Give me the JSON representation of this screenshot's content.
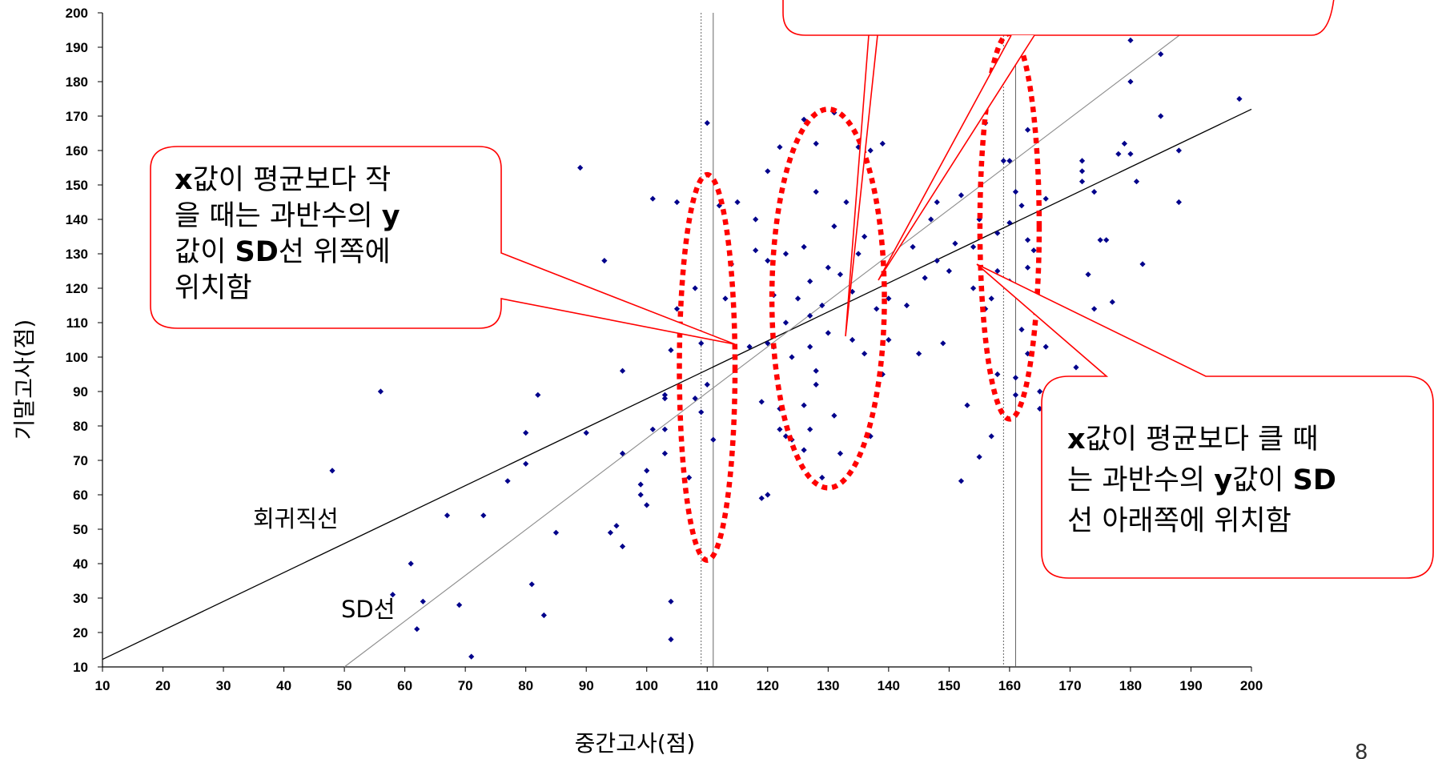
{
  "chart_data": {
    "type": "scatter",
    "title": "",
    "xlabel": "중간고사(점)",
    "ylabel": "기말고사(점)",
    "xlim": [
      10,
      200
    ],
    "ylim": [
      10,
      200
    ],
    "xticks": [
      "10",
      "20",
      "30",
      "40",
      "50",
      "60",
      "70",
      "80",
      "90",
      "100",
      "110",
      "120",
      "130",
      "140",
      "150",
      "160",
      "170",
      "180",
      "190",
      "200"
    ],
    "yticks": [
      "10",
      "20",
      "30",
      "40",
      "50",
      "60",
      "70",
      "80",
      "90",
      "100",
      "110",
      "120",
      "130",
      "140",
      "150",
      "160",
      "170",
      "180",
      "190",
      "200"
    ],
    "grid": false,
    "marker_color": "#00008B",
    "points": [
      [
        48,
        67
      ],
      [
        56,
        90
      ],
      [
        58,
        31
      ],
      [
        61,
        40
      ],
      [
        62,
        21
      ],
      [
        63,
        29
      ],
      [
        67,
        54
      ],
      [
        69,
        28
      ],
      [
        71,
        13
      ],
      [
        73,
        54
      ],
      [
        77,
        64
      ],
      [
        80,
        78
      ],
      [
        80,
        69
      ],
      [
        81,
        34
      ],
      [
        82,
        89
      ],
      [
        83,
        25
      ],
      [
        85,
        49
      ],
      [
        89,
        155
      ],
      [
        90,
        78
      ],
      [
        93,
        128
      ],
      [
        94,
        49
      ],
      [
        95,
        51
      ],
      [
        96,
        72
      ],
      [
        96,
        45
      ],
      [
        96,
        96
      ],
      [
        99,
        63
      ],
      [
        99,
        60
      ],
      [
        100,
        57
      ],
      [
        100,
        67
      ],
      [
        101,
        79
      ],
      [
        101,
        146
      ],
      [
        103,
        72
      ],
      [
        103,
        79
      ],
      [
        103,
        88
      ],
      [
        103,
        89
      ],
      [
        104,
        18
      ],
      [
        104,
        29
      ],
      [
        104,
        102
      ],
      [
        105,
        145
      ],
      [
        105,
        114
      ],
      [
        107,
        65
      ],
      [
        108,
        120
      ],
      [
        108,
        107
      ],
      [
        108,
        88
      ],
      [
        109,
        104
      ],
      [
        109,
        84
      ],
      [
        110,
        92
      ],
      [
        110,
        168
      ],
      [
        111,
        76
      ],
      [
        112,
        144
      ],
      [
        113,
        117
      ],
      [
        114,
        127
      ],
      [
        115,
        145
      ],
      [
        117,
        103
      ],
      [
        118,
        140
      ],
      [
        118,
        131
      ],
      [
        119,
        59
      ],
      [
        119,
        87
      ],
      [
        120,
        60
      ],
      [
        120,
        154
      ],
      [
        120,
        128
      ],
      [
        120,
        104
      ],
      [
        121,
        118
      ],
      [
        121,
        103
      ],
      [
        122,
        85
      ],
      [
        122,
        79
      ],
      [
        123,
        77
      ],
      [
        122,
        161
      ],
      [
        123,
        130
      ],
      [
        123,
        110
      ],
      [
        124,
        76
      ],
      [
        124,
        100
      ],
      [
        125,
        117
      ],
      [
        126,
        169
      ],
      [
        126,
        132
      ],
      [
        126,
        86
      ],
      [
        126,
        73
      ],
      [
        127,
        79
      ],
      [
        127,
        112
      ],
      [
        127,
        103
      ],
      [
        127,
        122
      ],
      [
        128,
        162
      ],
      [
        128,
        148
      ],
      [
        128,
        96
      ],
      [
        128,
        92
      ],
      [
        129,
        115
      ],
      [
        129,
        65
      ],
      [
        130,
        126
      ],
      [
        130,
        107
      ],
      [
        131,
        138
      ],
      [
        131,
        83
      ],
      [
        131,
        171
      ],
      [
        132,
        72
      ],
      [
        132,
        124
      ],
      [
        133,
        145
      ],
      [
        134,
        119
      ],
      [
        134,
        105
      ],
      [
        135,
        161
      ],
      [
        135,
        130
      ],
      [
        136,
        101
      ],
      [
        136,
        135
      ],
      [
        137,
        160
      ],
      [
        137,
        77
      ],
      [
        138,
        114
      ],
      [
        139,
        162
      ],
      [
        139,
        95
      ],
      [
        140,
        117
      ],
      [
        140,
        105
      ],
      [
        143,
        115
      ],
      [
        144,
        132
      ],
      [
        145,
        101
      ],
      [
        146,
        123
      ],
      [
        147,
        140
      ],
      [
        148,
        145
      ],
      [
        148,
        128
      ],
      [
        149,
        104
      ],
      [
        150,
        125
      ],
      [
        151,
        133
      ],
      [
        152,
        147
      ],
      [
        152,
        64
      ],
      [
        153,
        86
      ],
      [
        154,
        132
      ],
      [
        154,
        120
      ],
      [
        155,
        71
      ],
      [
        155,
        140
      ],
      [
        156,
        168
      ],
      [
        156,
        114
      ],
      [
        157,
        117
      ],
      [
        157,
        77
      ],
      [
        158,
        95
      ],
      [
        158,
        125
      ],
      [
        158,
        136
      ],
      [
        159,
        157
      ],
      [
        160,
        139
      ],
      [
        160,
        157
      ],
      [
        160,
        122
      ],
      [
        161,
        148
      ],
      [
        161,
        89
      ],
      [
        161,
        94
      ],
      [
        162,
        108
      ],
      [
        163,
        166
      ],
      [
        162,
        144
      ],
      [
        163,
        134
      ],
      [
        163,
        101
      ],
      [
        163,
        126
      ],
      [
        164,
        131
      ],
      [
        165,
        90
      ],
      [
        166,
        146
      ],
      [
        166,
        103
      ],
      [
        165,
        85
      ],
      [
        167,
        111
      ],
      [
        171,
        97
      ],
      [
        172,
        157
      ],
      [
        172,
        154
      ],
      [
        172,
        151
      ],
      [
        173,
        124
      ],
      [
        174,
        114
      ],
      [
        174,
        148
      ],
      [
        175,
        134
      ],
      [
        176,
        134
      ],
      [
        177,
        116
      ],
      [
        178,
        159
      ],
      [
        179,
        162
      ],
      [
        180,
        159
      ],
      [
        180,
        192
      ],
      [
        180,
        180
      ],
      [
        181,
        151
      ],
      [
        182,
        127
      ],
      [
        185,
        188
      ],
      [
        185,
        170
      ],
      [
        188,
        160
      ],
      [
        188,
        145
      ],
      [
        198,
        175
      ]
    ],
    "lines": [
      {
        "name": "회귀직선",
        "style": "black",
        "from": [
          10,
          12.2
        ],
        "to": [
          200,
          172
        ]
      },
      {
        "name": "SD선",
        "style": "gray",
        "from": [
          50,
          10
        ],
        "to": [
          193,
          200
        ]
      }
    ],
    "vlines": [
      {
        "x": 109,
        "style": "dotted"
      },
      {
        "x": 111,
        "style": "solid"
      },
      {
        "x": 159,
        "style": "dotted"
      },
      {
        "x": 161,
        "style": "solid"
      }
    ],
    "ellipses": [
      {
        "cx": 110,
        "cy": 97,
        "rx": 4.6,
        "ry": 56
      },
      {
        "cx": 130,
        "cy": 117,
        "rx": 9.3,
        "ry": 55
      },
      {
        "cx": 160,
        "cy": 138,
        "rx": 4.9,
        "ry": 56
      }
    ],
    "annotations": {
      "regression_label": "회귀직선",
      "sd_label": "SD선"
    }
  },
  "callouts": {
    "left": {
      "lines": [
        [
          {
            "t": "x",
            "b": true
          },
          {
            "t": "값이 평균보다 작",
            "b": false
          }
        ],
        [
          {
            "t": "을 때는 과반수의 ",
            "b": false
          },
          {
            "t": "y",
            "b": true
          }
        ],
        [
          {
            "t": "값이 ",
            "b": false
          },
          {
            "t": "SD",
            "b": true
          },
          {
            "t": "선 위쪽에",
            "b": false
          }
        ],
        [
          {
            "t": "위치함",
            "b": false
          }
        ]
      ]
    },
    "right": {
      "lines": [
        [
          {
            "t": "x",
            "b": true
          },
          {
            "t": "값이 평균보다 클 때",
            "b": false
          }
        ],
        [
          {
            "t": "는 과반수의 ",
            "b": false
          },
          {
            "t": "y",
            "b": true
          },
          {
            "t": "값이 ",
            "b": false
          },
          {
            "t": "SD",
            "b": true
          }
        ],
        [
          {
            "t": "선 아래쪽에 위치함",
            "b": false
          }
        ]
      ]
    }
  },
  "colors": {
    "callout_border": "#FF0000",
    "ellipse": "#FF0000",
    "regression": "#000000",
    "sd_line": "#8C8C8C"
  },
  "page_number": "8"
}
